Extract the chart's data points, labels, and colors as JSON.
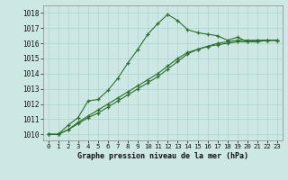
{
  "title": "Graphe pression niveau de la mer (hPa)",
  "background_color": "#cde8e4",
  "line_color": "#2d6e2d",
  "grid_color": "#b0d8d0",
  "xlim_min": -0.5,
  "xlim_max": 23.5,
  "ylim_min": 1009.6,
  "ylim_max": 1018.5,
  "xticks": [
    0,
    1,
    2,
    3,
    4,
    5,
    6,
    7,
    8,
    9,
    10,
    11,
    12,
    13,
    14,
    15,
    16,
    17,
    18,
    19,
    20,
    21,
    22,
    23
  ],
  "yticks": [
    1010,
    1011,
    1012,
    1013,
    1014,
    1015,
    1016,
    1017,
    1018
  ],
  "hours": [
    0,
    1,
    2,
    3,
    4,
    5,
    6,
    7,
    8,
    9,
    10,
    11,
    12,
    13,
    14,
    15,
    16,
    17,
    18,
    19,
    20,
    21,
    22,
    23
  ],
  "line1": [
    1010.0,
    1010.0,
    1010.6,
    1011.1,
    1012.2,
    1012.3,
    1012.9,
    1013.7,
    1014.7,
    1015.6,
    1016.6,
    1017.3,
    1017.9,
    1017.5,
    1016.9,
    1016.7,
    1016.6,
    1016.5,
    1016.2,
    1016.4,
    1016.1,
    1016.1,
    1016.2,
    1016.2
  ],
  "line2": [
    1010.0,
    1010.0,
    1010.3,
    1010.8,
    1011.2,
    1011.6,
    1012.0,
    1012.4,
    1012.8,
    1013.2,
    1013.6,
    1014.0,
    1014.5,
    1015.0,
    1015.4,
    1015.6,
    1015.8,
    1016.0,
    1016.1,
    1016.2,
    1016.2,
    1016.2,
    1016.2,
    1016.2
  ],
  "line3": [
    1010.0,
    1010.0,
    1010.3,
    1010.7,
    1011.1,
    1011.4,
    1011.8,
    1012.2,
    1012.6,
    1013.0,
    1013.4,
    1013.8,
    1014.3,
    1014.8,
    1015.3,
    1015.6,
    1015.8,
    1015.9,
    1016.0,
    1016.1,
    1016.1,
    1016.2,
    1016.2,
    1016.2
  ]
}
